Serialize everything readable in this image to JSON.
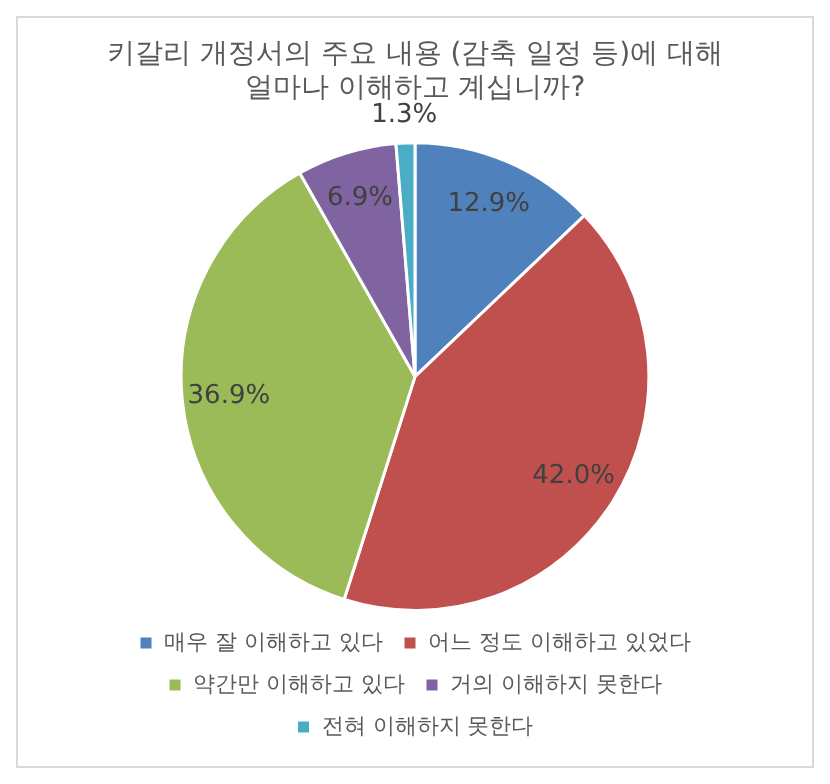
{
  "chart_data": {
    "type": "pie",
    "title": "키갈리 개정서의 주요 내용 (감축 일정 등)에 대해\n얼마나 이해하고 계십니까?",
    "categories": [
      "매우 잘 이해하고 있다",
      "어느 정도 이해하고 있었다",
      "약간만 이해하고 있다",
      "거의 이해하지 못한다",
      "전혀 이해하지 못한다"
    ],
    "values": [
      12.9,
      42.0,
      36.9,
      6.9,
      1.3
    ],
    "value_labels": [
      "12.9%",
      "42.0%",
      "36.9%",
      "6.9%",
      "1.3%"
    ],
    "colors": [
      "#4f81bd",
      "#c0504d",
      "#9bbb59",
      "#8064a2",
      "#4bacc6"
    ],
    "legend": "bottom"
  }
}
